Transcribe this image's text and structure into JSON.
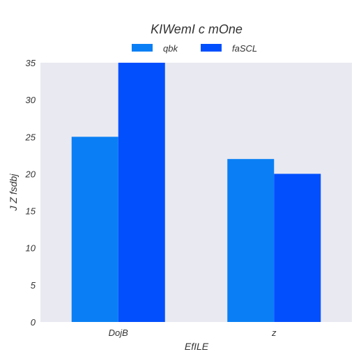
{
  "chart_data": {
    "type": "bar",
    "title": "KIWemI c mOne",
    "xlabel": "EfILE",
    "ylabel": "J Z fsdbj",
    "categories": [
      "DojB",
      "z"
    ],
    "series": [
      {
        "name": "qbk",
        "values": [
          25,
          22
        ],
        "color": "#0a7ff5"
      },
      {
        "name": "faSCL",
        "values": [
          35,
          20
        ],
        "color": "#014ffd"
      }
    ],
    "ylim": [
      0,
      35
    ],
    "yticks": [
      0,
      5,
      10,
      15,
      20,
      25,
      30,
      35
    ],
    "grid": false,
    "legend_position": "top-center",
    "background_color": "#e9e9f1"
  }
}
